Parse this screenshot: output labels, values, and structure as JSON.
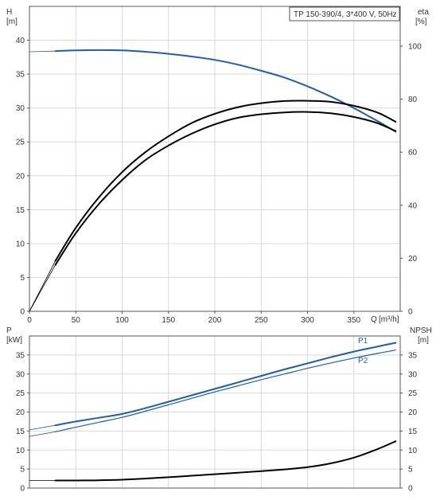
{
  "title_box": "TP 150-390/4, 3*400 V, 50Hz",
  "chart_data": [
    {
      "type": "line",
      "name": "pump-curve-chart",
      "left_axis": {
        "symbol": "H",
        "unit": "[m]",
        "range": [
          0,
          45
        ],
        "ticks": [
          0,
          5,
          10,
          15,
          20,
          25,
          30,
          35,
          40
        ]
      },
      "right_axis": {
        "symbol": "eta",
        "unit": "[%]",
        "range": [
          0,
          115
        ],
        "ticks": [
          0,
          20,
          40,
          60,
          80,
          100
        ]
      },
      "x_axis": {
        "symbol": "Q",
        "unit": "[m³/h]",
        "range": [
          0,
          400
        ],
        "ticks": [
          0,
          50,
          100,
          150,
          200,
          250,
          300,
          350
        ]
      },
      "grid": true,
      "series": [
        {
          "key": "head",
          "axis": "left",
          "color": "#1f5ea8",
          "width": 2,
          "thin_extension": {
            "x": [
              0,
              28
            ],
            "y": [
              38.3,
              38.4
            ]
          },
          "x": [
            28,
            50,
            75,
            100,
            125,
            150,
            175,
            200,
            225,
            250,
            275,
            300,
            325,
            350,
            375,
            395
          ],
          "y": [
            38.4,
            38.5,
            38.55,
            38.5,
            38.3,
            38.0,
            37.6,
            37.1,
            36.4,
            35.5,
            34.5,
            33.2,
            31.7,
            30.0,
            28.1,
            26.5
          ]
        },
        {
          "key": "eta-upper",
          "axis": "right",
          "color": "#000000",
          "width": 2,
          "thin_extension": {
            "x": [
              0,
              28
            ],
            "y": [
              0,
              19
            ]
          },
          "x": [
            28,
            50,
            75,
            100,
            125,
            150,
            175,
            200,
            225,
            250,
            275,
            300,
            325,
            350,
            375,
            395
          ],
          "y": [
            19,
            31.5,
            43,
            52.5,
            60,
            66,
            71,
            74.5,
            77,
            78.5,
            79.3,
            79.4,
            79,
            77.5,
            75,
            71.5
          ]
        },
        {
          "key": "eta-lower",
          "axis": "right",
          "color": "#000000",
          "width": 2,
          "thin_extension": {
            "x": [
              0,
              28
            ],
            "y": [
              0,
              17.5
            ]
          },
          "x": [
            28,
            50,
            75,
            100,
            125,
            150,
            175,
            200,
            225,
            250,
            275,
            300,
            325,
            350,
            375,
            395
          ],
          "y": [
            17.5,
            29.5,
            40.5,
            49.5,
            57,
            62.5,
            67,
            70.5,
            73,
            74.3,
            75,
            75.2,
            74.7,
            73.3,
            71,
            68
          ]
        }
      ]
    },
    {
      "type": "line",
      "name": "power-npsh-chart",
      "left_axis": {
        "symbol": "P",
        "unit": "[kW]",
        "range": [
          0,
          40
        ],
        "ticks": [
          0,
          5,
          10,
          15,
          20,
          25,
          30,
          35
        ]
      },
      "right_axis": {
        "symbol": "NPSH",
        "unit": "[m]",
        "range": [
          0,
          40
        ],
        "ticks": [
          0,
          5,
          10,
          15,
          20,
          25,
          30,
          35
        ]
      },
      "x_range": [
        0,
        400
      ],
      "grid": true,
      "series": [
        {
          "key": "p1",
          "name": "P1",
          "axis": "left",
          "color": "#1f5ea8",
          "width": 2,
          "thin_extension": {
            "x": [
              0,
              28
            ],
            "y": [
              15.3,
              16.5
            ]
          },
          "x": [
            28,
            50,
            75,
            100,
            125,
            150,
            175,
            200,
            225,
            250,
            275,
            300,
            325,
            350,
            375,
            395
          ],
          "y": [
            16.5,
            17.5,
            18.5,
            19.5,
            21.0,
            22.7,
            24.4,
            26.1,
            27.8,
            29.5,
            31.2,
            32.8,
            34.4,
            35.9,
            37.2,
            38.2
          ]
        },
        {
          "key": "p2",
          "name": "P2",
          "axis": "left",
          "color": "#1f5ea8",
          "width": 1.2,
          "thin_extension": {
            "x": [
              0,
              28
            ],
            "y": [
              13.6,
              14.8
            ]
          },
          "x": [
            28,
            50,
            75,
            100,
            125,
            150,
            175,
            200,
            225,
            250,
            275,
            300,
            325,
            350,
            375,
            395
          ],
          "y": [
            14.8,
            16.0,
            17.3,
            18.6,
            20.2,
            21.9,
            23.6,
            25.3,
            26.9,
            28.5,
            30.0,
            31.5,
            32.9,
            34.2,
            35.4,
            36.3
          ]
        },
        {
          "key": "npsh",
          "axis": "right",
          "color": "#000000",
          "width": 2,
          "thin_extension": {
            "x": [
              0,
              28
            ],
            "y": [
              2.0,
              2.0
            ]
          },
          "x": [
            28,
            50,
            75,
            100,
            125,
            150,
            175,
            200,
            225,
            250,
            275,
            300,
            325,
            350,
            375,
            395
          ],
          "y": [
            2.0,
            2.0,
            2.05,
            2.2,
            2.5,
            2.85,
            3.25,
            3.65,
            4.05,
            4.45,
            4.9,
            5.5,
            6.5,
            8.0,
            10.2,
            12.3
          ]
        }
      ]
    }
  ]
}
